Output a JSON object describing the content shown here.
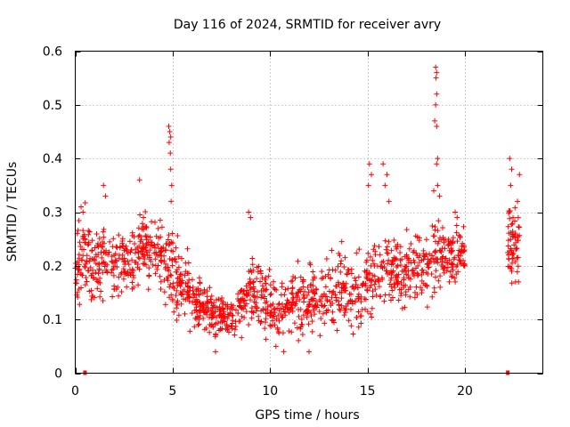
{
  "chart_data": {
    "type": "scatter",
    "title": "Day 116 of 2024, SRMTID for receiver avry",
    "xlabel": "GPS time / hours",
    "ylabel": "SRMTID / TECUs",
    "xlim": [
      0,
      24
    ],
    "ylim": [
      0,
      0.6
    ],
    "x_ticks": [
      0,
      5,
      10,
      15,
      20
    ],
    "y_ticks": [
      0,
      0.1,
      0.2,
      0.3,
      0.4,
      0.5,
      0.6
    ],
    "x_tick_labels": [
      "0",
      "5",
      "10",
      "15",
      "20"
    ],
    "y_tick_labels": [
      "0",
      "0.1",
      "0.2",
      "0.3",
      "0.4",
      "0.5",
      "0.6"
    ],
    "grid": true,
    "marker": "plus",
    "color": "#ff0000",
    "density_profile": {
      "description": "approximate central value and spread of the point cloud per hour",
      "hours": [
        0.0,
        0.5,
        1.0,
        1.5,
        2.0,
        2.5,
        3.0,
        3.5,
        4.0,
        4.5,
        5.0,
        5.5,
        6.0,
        6.5,
        7.0,
        7.5,
        8.0,
        8.5,
        9.0,
        9.5,
        10.0,
        10.5,
        11.0,
        11.5,
        12.0,
        12.5,
        13.0,
        13.5,
        14.0,
        14.5,
        15.0,
        15.5,
        16.0,
        16.5,
        17.0,
        17.5,
        18.0,
        18.5,
        19.0,
        19.5,
        20.0
      ],
      "center": [
        0.2,
        0.22,
        0.18,
        0.22,
        0.2,
        0.21,
        0.2,
        0.24,
        0.22,
        0.22,
        0.2,
        0.16,
        0.14,
        0.13,
        0.11,
        0.11,
        0.11,
        0.12,
        0.15,
        0.14,
        0.12,
        0.12,
        0.13,
        0.13,
        0.14,
        0.14,
        0.15,
        0.16,
        0.15,
        0.14,
        0.17,
        0.19,
        0.2,
        0.19,
        0.19,
        0.2,
        0.2,
        0.22,
        0.22,
        0.22,
        0.22
      ],
      "spread": [
        0.05,
        0.06,
        0.06,
        0.06,
        0.05,
        0.05,
        0.05,
        0.04,
        0.05,
        0.05,
        0.06,
        0.05,
        0.04,
        0.04,
        0.03,
        0.03,
        0.03,
        0.04,
        0.05,
        0.05,
        0.04,
        0.04,
        0.04,
        0.05,
        0.05,
        0.05,
        0.05,
        0.05,
        0.05,
        0.05,
        0.05,
        0.05,
        0.05,
        0.05,
        0.05,
        0.05,
        0.05,
        0.06,
        0.05,
        0.04,
        0.03
      ],
      "late_segment": {
        "x_start": 22.2,
        "x_end": 22.8,
        "center": 0.25,
        "spread": 0.05
      }
    },
    "notable_points": [
      {
        "x": 0.1,
        "y": 0.26
      },
      {
        "x": 0.3,
        "y": 0.31
      },
      {
        "x": 0.4,
        "y": 0.3
      },
      {
        "x": 1.45,
        "y": 0.35
      },
      {
        "x": 1.55,
        "y": 0.33
      },
      {
        "x": 3.3,
        "y": 0.36
      },
      {
        "x": 3.5,
        "y": 0.29
      },
      {
        "x": 4.8,
        "y": 0.46
      },
      {
        "x": 4.85,
        "y": 0.45
      },
      {
        "x": 4.9,
        "y": 0.44
      },
      {
        "x": 4.82,
        "y": 0.43
      },
      {
        "x": 4.88,
        "y": 0.41
      },
      {
        "x": 4.9,
        "y": 0.38
      },
      {
        "x": 4.95,
        "y": 0.35
      },
      {
        "x": 4.92,
        "y": 0.32
      },
      {
        "x": 7.2,
        "y": 0.04
      },
      {
        "x": 8.9,
        "y": 0.3
      },
      {
        "x": 9.0,
        "y": 0.29
      },
      {
        "x": 10.3,
        "y": 0.05
      },
      {
        "x": 10.7,
        "y": 0.04
      },
      {
        "x": 12.0,
        "y": 0.04
      },
      {
        "x": 15.1,
        "y": 0.39
      },
      {
        "x": 15.2,
        "y": 0.37
      },
      {
        "x": 15.05,
        "y": 0.35
      },
      {
        "x": 15.8,
        "y": 0.39
      },
      {
        "x": 16.0,
        "y": 0.37
      },
      {
        "x": 15.9,
        "y": 0.35
      },
      {
        "x": 16.1,
        "y": 0.32
      },
      {
        "x": 18.5,
        "y": 0.57
      },
      {
        "x": 18.55,
        "y": 0.56
      },
      {
        "x": 18.52,
        "y": 0.55
      },
      {
        "x": 18.55,
        "y": 0.52
      },
      {
        "x": 18.5,
        "y": 0.5
      },
      {
        "x": 18.45,
        "y": 0.47
      },
      {
        "x": 18.55,
        "y": 0.46
      },
      {
        "x": 18.6,
        "y": 0.4
      },
      {
        "x": 18.55,
        "y": 0.39
      },
      {
        "x": 18.6,
        "y": 0.35
      },
      {
        "x": 18.4,
        "y": 0.34
      },
      {
        "x": 18.7,
        "y": 0.33
      },
      {
        "x": 19.5,
        "y": 0.3
      },
      {
        "x": 19.6,
        "y": 0.29
      },
      {
        "x": 22.3,
        "y": 0.4
      },
      {
        "x": 22.4,
        "y": 0.38
      },
      {
        "x": 22.8,
        "y": 0.37
      },
      {
        "x": 22.35,
        "y": 0.35
      },
      {
        "x": 22.7,
        "y": 0.32
      },
      {
        "x": 22.6,
        "y": 0.17
      },
      {
        "x": 22.75,
        "y": 0.17
      },
      {
        "x": 22.4,
        "y": 0.19
      }
    ],
    "zero_markers": [
      {
        "x": 0.5,
        "y": 0.0
      },
      {
        "x": 22.2,
        "y": 0.0
      }
    ]
  }
}
